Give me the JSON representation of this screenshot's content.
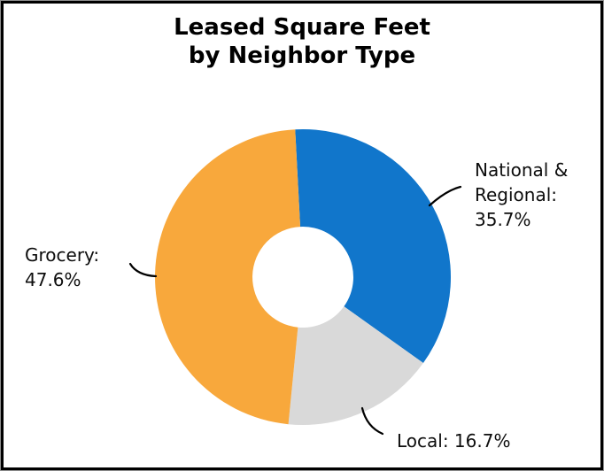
{
  "title": {
    "line1": "Leased Square Feet",
    "line2": "by Neighbor Type"
  },
  "chart_data": {
    "type": "pie",
    "subtype": "donut",
    "title": "Leased Square Feet by Neighbor Type",
    "start_angle_deg": -3,
    "hole_ratio": 0.34,
    "legend": "none",
    "units": "%",
    "slices": [
      {
        "id": "national-regional",
        "label": "National & Regional",
        "value": 35.7,
        "color": "#1176CB"
      },
      {
        "id": "local",
        "label": "Local",
        "value": 16.7,
        "color": "#D9D9D9"
      },
      {
        "id": "grocery",
        "label": "Grocery",
        "value": 47.6,
        "color": "#F8A83C"
      }
    ],
    "data_labels": [
      {
        "slice": "national-regional",
        "lines": [
          "National &",
          "Regional:",
          "35.7%"
        ]
      },
      {
        "slice": "grocery",
        "lines": [
          "Grocery:",
          "47.6%"
        ]
      },
      {
        "slice": "local",
        "lines": [
          "Local: 16.7%"
        ]
      }
    ]
  },
  "colors": {
    "background": "#FFFFFF",
    "border": "#000000",
    "border_edge": "#8E8E8E",
    "leader_line": "#000000",
    "title_text": "#000000",
    "label_text": "#0D0D0D"
  }
}
